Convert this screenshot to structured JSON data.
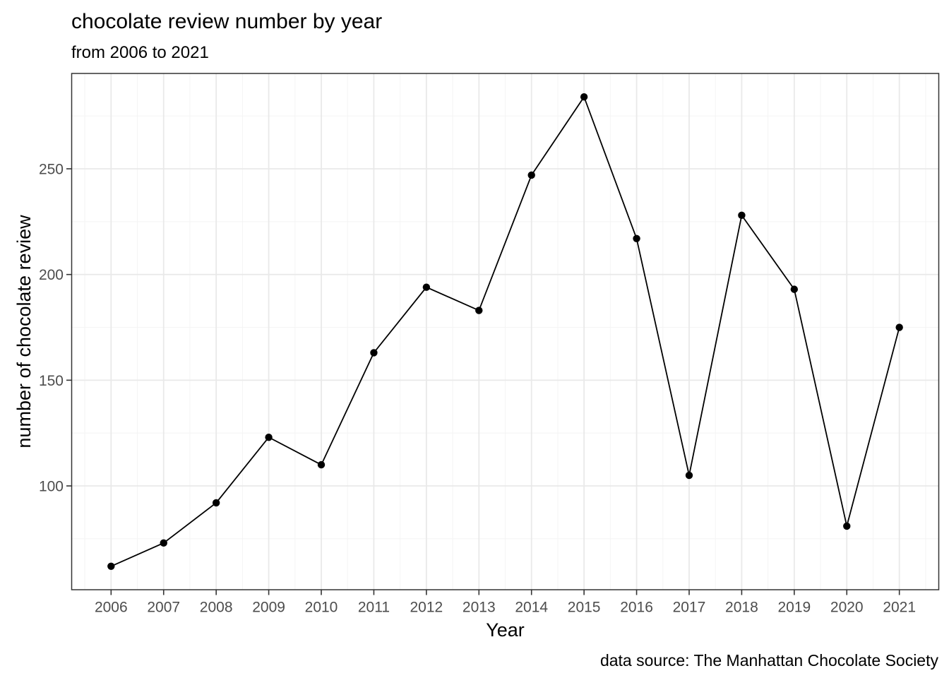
{
  "chart_data": {
    "type": "line",
    "title": "chocolate review number by year",
    "subtitle": "from 2006 to 2021",
    "caption": "data source: The Manhattan Chocolate Society",
    "xlabel": "Year",
    "ylabel": "number of chocolate review",
    "x": [
      2006,
      2007,
      2008,
      2009,
      2010,
      2011,
      2012,
      2013,
      2014,
      2015,
      2016,
      2017,
      2018,
      2019,
      2020,
      2021
    ],
    "y": [
      62,
      73,
      92,
      123,
      110,
      163,
      194,
      183,
      247,
      284,
      217,
      105,
      228,
      193,
      81,
      175
    ],
    "x_tick_labels": [
      "2006",
      "2007",
      "2008",
      "2009",
      "2010",
      "2011",
      "2012",
      "2013",
      "2014",
      "2015",
      "2016",
      "2017",
      "2018",
      "2019",
      "2020",
      "2021"
    ],
    "y_ticks": [
      100,
      150,
      200,
      250
    ],
    "y_tick_labels": [
      "100",
      "150",
      "200",
      "250"
    ],
    "x_minor_gridlines": [
      2005.5,
      2006.5,
      2007.5,
      2008.5,
      2009.5,
      2010.5,
      2011.5,
      2012.5,
      2013.5,
      2014.5,
      2015.5,
      2016.5,
      2017.5,
      2018.5,
      2019.5,
      2020.5,
      2021.5
    ],
    "y_minor_gridlines": [
      75,
      125,
      175,
      225,
      275
    ],
    "x_domain": [
      2005.25,
      2021.75
    ],
    "y_domain": [
      50.9,
      295.1
    ],
    "grid": true,
    "legend": "none",
    "colors": {
      "background": "#ffffff",
      "line": "#000000",
      "point": "#000000",
      "panel_border": "#333333",
      "grid_major": "#e9e9e9",
      "grid_minor": "#f4f4f4",
      "tick_mark": "#333333",
      "tick_label": "#4d4d4d",
      "text": "#000000"
    }
  }
}
